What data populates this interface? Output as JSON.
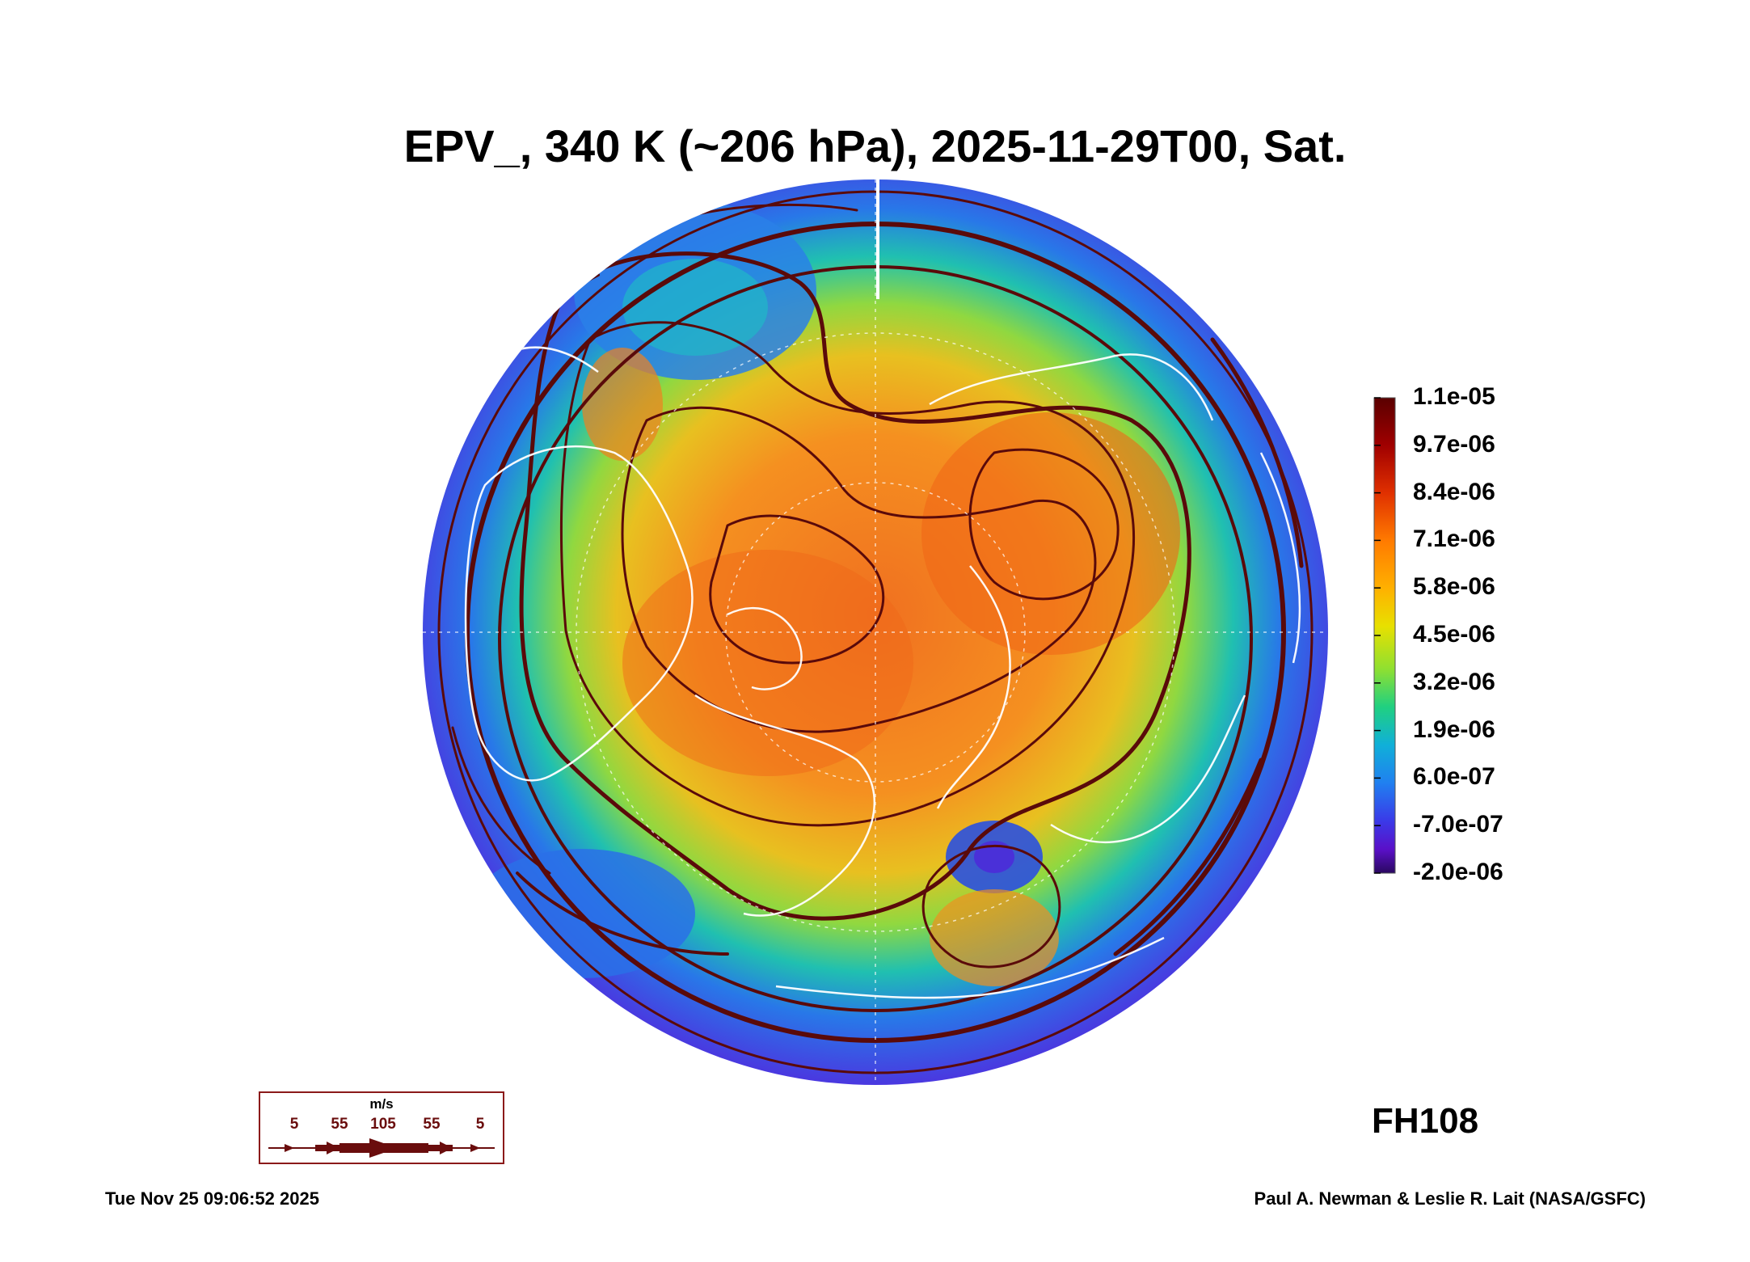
{
  "title": "EPV_, 340 K (~206 hPa), 2025-11-29T00, Sat.",
  "colorbar": {
    "labels": [
      "1.1e-05",
      "9.7e-06",
      "8.4e-06",
      "7.1e-06",
      "5.8e-06",
      "4.5e-06",
      "3.2e-06",
      "1.9e-06",
      "6.0e-07",
      "-7.0e-07",
      "-2.0e-06"
    ],
    "colors": [
      "#5a0000",
      "#a00000",
      "#e03000",
      "#ff7a00",
      "#ffb000",
      "#e8e000",
      "#90e030",
      "#20d080",
      "#10b0d8",
      "#2080f0",
      "#3a3ae8",
      "#5a10c8",
      "#2a0860"
    ]
  },
  "forecast_hour": "FH108",
  "wind_legend": {
    "unit": "m/s",
    "labels": [
      "5",
      "55",
      "105",
      "55",
      "5"
    ],
    "color": "#6a0d0d"
  },
  "timestamp": "Tue Nov 25 09:06:52 2025",
  "credit": "Paul A. Newman & Leslie R. Lait (NASA/GSFC)",
  "map_colors": {
    "outer_ring": "#4a3ae0",
    "streamline": "#5a0a0a",
    "coastline": "#ffffff"
  }
}
